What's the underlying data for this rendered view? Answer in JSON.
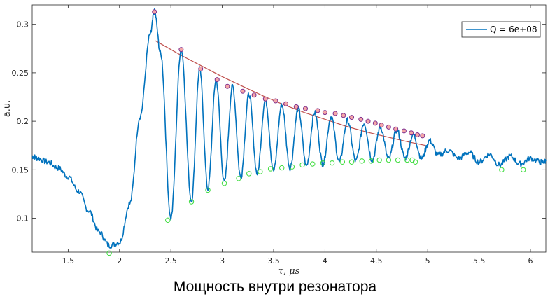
{
  "caption": "Мощность внутри резонатора",
  "chart_data": {
    "type": "line",
    "xlabel": "τ, μs",
    "ylabel": "a.u.",
    "xlim": [
      1.15,
      6.15
    ],
    "ylim": [
      0.065,
      0.32
    ],
    "xticks": [
      1.5,
      2,
      2.5,
      3,
      3.5,
      4,
      4.5,
      5,
      5.5,
      6
    ],
    "yticks": [
      0.1,
      0.15,
      0.2,
      0.25,
      0.3
    ],
    "xtick_labels": [
      "1.5",
      "2",
      "2.5",
      "3",
      "3.5",
      "4",
      "4.5",
      "5",
      "5.5",
      "6"
    ],
    "ytick_labels": [
      "0.1",
      "0.15",
      "0.2",
      "0.25",
      "0.3"
    ],
    "legend": {
      "position": "top-right",
      "entries": [
        "Q = 6e+08"
      ]
    },
    "colors": {
      "signal": "#0072BD",
      "fit": "#C0504D",
      "maxima": "#7E2F8E",
      "minima": "#3DDC3D",
      "maxima_fill": "#F4A6A6"
    },
    "series": [
      {
        "name": "Q = 6e+08",
        "x": [
          1.15,
          1.2,
          1.3,
          1.4,
          1.5,
          1.6,
          1.7,
          1.8,
          1.9,
          2.0,
          2.1,
          2.2,
          2.3,
          2.34,
          2.4,
          2.5,
          2.6,
          2.7,
          2.78,
          2.86,
          2.94,
          3.02,
          3.1,
          3.18,
          3.26,
          3.34,
          3.42,
          3.5,
          3.58,
          3.66,
          3.74,
          3.82,
          3.9,
          3.98,
          4.06,
          4.14,
          4.22,
          4.3,
          4.38,
          4.46,
          4.54,
          4.62,
          4.7,
          4.78,
          4.86,
          4.94,
          5.02,
          5.1,
          5.2,
          5.3,
          5.4,
          5.5,
          5.6,
          5.7,
          5.8,
          5.9,
          6.0,
          6.1,
          6.15
        ],
        "y": [
          0.164,
          0.162,
          0.158,
          0.152,
          0.143,
          0.128,
          0.108,
          0.086,
          0.072,
          0.075,
          0.115,
          0.205,
          0.29,
          0.313,
          0.27,
          0.1,
          0.275,
          0.118,
          0.254,
          0.13,
          0.243,
          0.137,
          0.236,
          0.142,
          0.228,
          0.146,
          0.222,
          0.149,
          0.217,
          0.152,
          0.213,
          0.154,
          0.209,
          0.156,
          0.205,
          0.158,
          0.201,
          0.159,
          0.198,
          0.16,
          0.194,
          0.161,
          0.191,
          0.162,
          0.186,
          0.162,
          0.18,
          0.165,
          0.17,
          0.162,
          0.168,
          0.158,
          0.166,
          0.155,
          0.164,
          0.156,
          0.162,
          0.158,
          0.159
        ]
      },
      {
        "name": "",
        "type": "fit",
        "x": [
          2.35,
          2.6,
          2.8,
          3.0,
          3.2,
          3.4,
          3.6,
          3.8,
          4.0,
          4.2,
          4.4,
          4.6,
          4.8,
          4.98
        ],
        "y": [
          0.283,
          0.268,
          0.257,
          0.246,
          0.236,
          0.226,
          0.217,
          0.209,
          0.202,
          0.195,
          0.189,
          0.184,
          0.179,
          0.175
        ]
      }
    ],
    "maxima": {
      "x": [
        2.34,
        2.6,
        2.79,
        2.95,
        3.05,
        3.2,
        3.31,
        3.42,
        3.52,
        3.62,
        3.72,
        3.81,
        3.93,
        4.0,
        4.1,
        4.18,
        4.26,
        4.35,
        4.42,
        4.49,
        4.55,
        4.62,
        4.69,
        4.77,
        4.84,
        4.9,
        4.95
      ],
      "y": [
        0.313,
        0.274,
        0.254,
        0.243,
        0.236,
        0.231,
        0.227,
        0.223,
        0.221,
        0.218,
        0.215,
        0.213,
        0.211,
        0.209,
        0.208,
        0.206,
        0.204,
        0.202,
        0.2,
        0.198,
        0.196,
        0.194,
        0.192,
        0.19,
        0.188,
        0.186,
        0.185
      ]
    },
    "minima": {
      "x": [
        1.9,
        2.47,
        2.7,
        2.86,
        3.02,
        3.16,
        3.26,
        3.37,
        3.47,
        3.58,
        3.68,
        3.78,
        3.88,
        3.98,
        4.07,
        4.17,
        4.26,
        4.36,
        4.45,
        4.53,
        4.62,
        4.71,
        4.8,
        4.85,
        4.88,
        5.72,
        5.93
      ],
      "y": [
        0.064,
        0.098,
        0.117,
        0.129,
        0.136,
        0.141,
        0.146,
        0.148,
        0.151,
        0.152,
        0.153,
        0.155,
        0.156,
        0.157,
        0.157,
        0.158,
        0.158,
        0.159,
        0.159,
        0.16,
        0.16,
        0.16,
        0.16,
        0.16,
        0.158,
        0.15,
        0.15
      ]
    }
  }
}
